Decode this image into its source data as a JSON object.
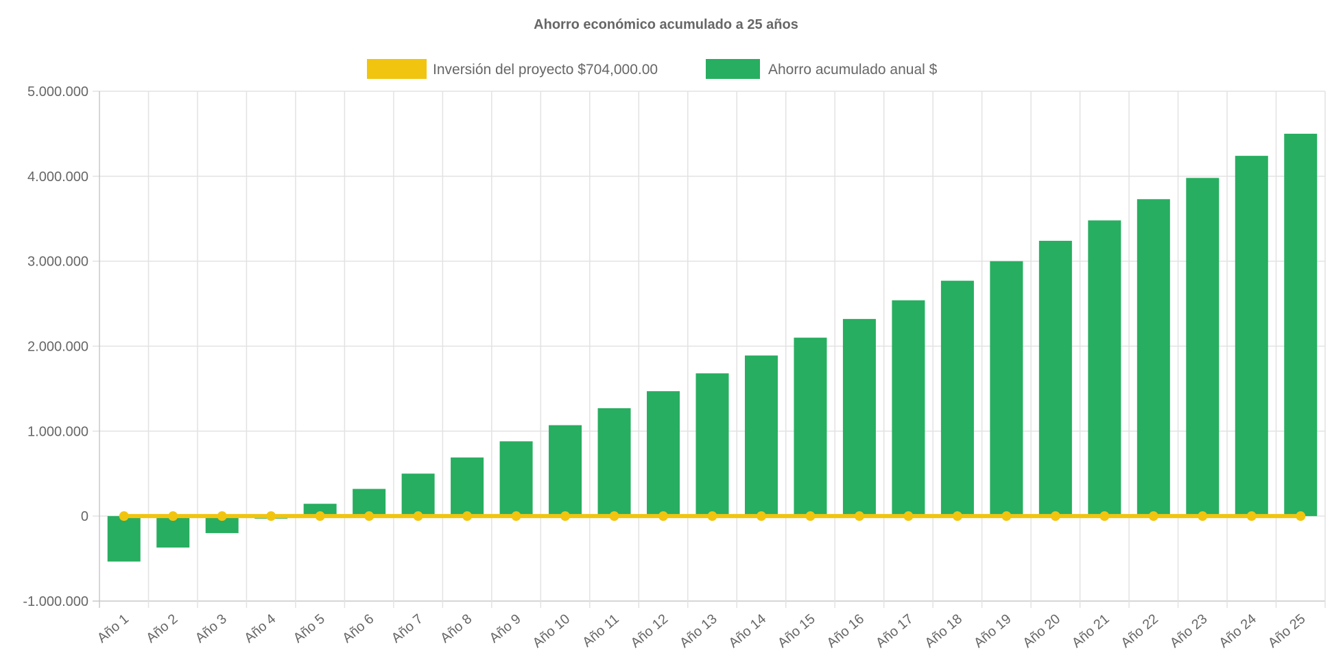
{
  "chart_data": {
    "type": "bar",
    "title": "Ahorro económico acumulado a 25 años",
    "xlabel": "",
    "ylabel": "",
    "ylim": [
      -1000000,
      5000000
    ],
    "y_ticks": [
      -1000000,
      0,
      1000000,
      2000000,
      3000000,
      4000000,
      5000000
    ],
    "y_tick_labels": [
      "-1.000.000",
      "0",
      "1.000.000",
      "2.000.000",
      "3.000.000",
      "4.000.000",
      "5.000.000"
    ],
    "grid": true,
    "legend_position": "top",
    "categories": [
      "Año 1",
      "Año 2",
      "Año 3",
      "Año 4",
      "Año 5",
      "Año 6",
      "Año 7",
      "Año 8",
      "Año 9",
      "Año 10",
      "Año 11",
      "Año 12",
      "Año 13",
      "Año 14",
      "Año 15",
      "Año 16",
      "Año 17",
      "Año 18",
      "Año 19",
      "Año 20",
      "Año 21",
      "Año 22",
      "Año 23",
      "Año 24",
      "Año 25"
    ],
    "series": [
      {
        "name": "Inversión del proyecto $704,000.00",
        "type": "line",
        "color": "#f1c40f",
        "values": [
          0,
          0,
          0,
          0,
          0,
          0,
          0,
          0,
          0,
          0,
          0,
          0,
          0,
          0,
          0,
          0,
          0,
          0,
          0,
          0,
          0,
          0,
          0,
          0,
          0
        ]
      },
      {
        "name": "Ahorro acumulado anual $",
        "type": "bar",
        "color": "#27ae60",
        "values": [
          -535000,
          -370000,
          -200000,
          -30000,
          145000,
          320000,
          500000,
          690000,
          880000,
          1070000,
          1270000,
          1470000,
          1680000,
          1890000,
          2100000,
          2320000,
          2540000,
          2770000,
          3000000,
          3240000,
          3480000,
          3730000,
          3980000,
          4240000,
          4500000
        ]
      }
    ]
  }
}
